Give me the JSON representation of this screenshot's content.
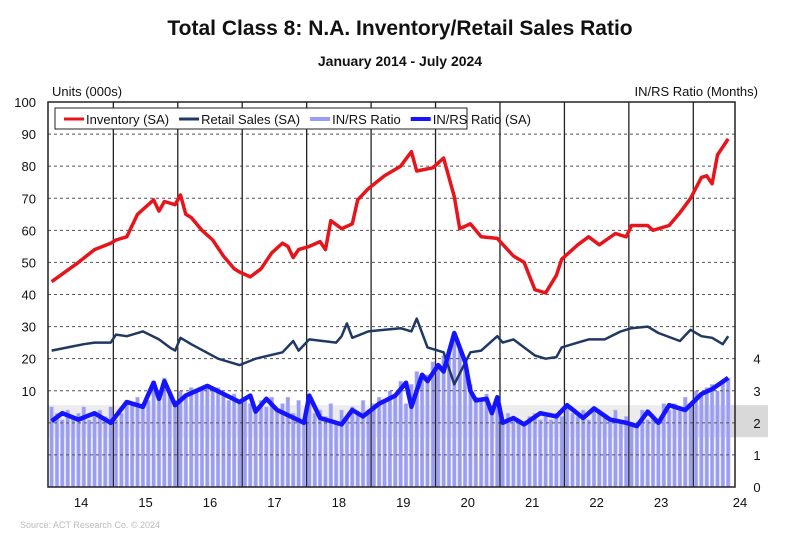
{
  "chart_data": {
    "type": "line",
    "title": "Total Class 8: N.A. Inventory/Retail Sales Ratio",
    "subtitle": "January 2014 - July 2024",
    "ylabel_left": "Units (000s)",
    "ylabel_right": "IN/RS Ratio (Months)",
    "ylim_left": [
      -20,
      100
    ],
    "ylim_right": [
      0,
      12
    ],
    "yticks_left": [
      "100",
      "90",
      "80",
      "70",
      "60",
      "50",
      "40",
      "30",
      "20",
      "10"
    ],
    "yticks_right": [
      "4",
      "3",
      "2",
      "1",
      "0"
    ],
    "xticks": [
      "14",
      "15",
      "16",
      "17",
      "18",
      "19",
      "20",
      "21",
      "22",
      "23",
      "24"
    ],
    "x_range": [
      "2014-01",
      "2024-07"
    ],
    "grid": true,
    "legend_position": "top",
    "band_right": {
      "from": 1.55,
      "to": 2.55,
      "color": "#d9d9d9"
    },
    "source": "Source: ACT Research Co. © 2024",
    "series": [
      {
        "name": "Inventory (SA)",
        "axis": "left",
        "style": "line",
        "color": "#e8141c",
        "points": [
          [
            "2014-01",
            44
          ],
          [
            "2014-06",
            50
          ],
          [
            "2014-09",
            54
          ],
          [
            "2014-12",
            56
          ],
          [
            "2015-01",
            57
          ],
          [
            "2015-03",
            58
          ],
          [
            "2015-05",
            65
          ],
          [
            "2015-08",
            69.5
          ],
          [
            "2015-09",
            66
          ],
          [
            "2015-10",
            69
          ],
          [
            "2015-12",
            68
          ],
          [
            "2016-01",
            71
          ],
          [
            "2016-02",
            65
          ],
          [
            "2016-03",
            64
          ],
          [
            "2016-05",
            60
          ],
          [
            "2016-07",
            57
          ],
          [
            "2016-09",
            52
          ],
          [
            "2016-11",
            48
          ],
          [
            "2016-12",
            47
          ],
          [
            "2017-02",
            45.5
          ],
          [
            "2017-04",
            48
          ],
          [
            "2017-06",
            53
          ],
          [
            "2017-08",
            56
          ],
          [
            "2017-09",
            55
          ],
          [
            "2017-10",
            51.5
          ],
          [
            "2017-11",
            54
          ],
          [
            "2018-01",
            55
          ],
          [
            "2018-03",
            56.5
          ],
          [
            "2018-04",
            54
          ],
          [
            "2018-05",
            63
          ],
          [
            "2018-07",
            60.5
          ],
          [
            "2018-09",
            62
          ],
          [
            "2018-10",
            69.5
          ],
          [
            "2018-12",
            73
          ],
          [
            "2019-03",
            77
          ],
          [
            "2019-06",
            80
          ],
          [
            "2019-08",
            84.5
          ],
          [
            "2019-09",
            78.5
          ],
          [
            "2019-12",
            79.5
          ],
          [
            "2020-02",
            82.5
          ],
          [
            "2020-04",
            70.5
          ],
          [
            "2020-05",
            60.5
          ],
          [
            "2020-07",
            62
          ],
          [
            "2020-09",
            58
          ],
          [
            "2020-12",
            57.5
          ],
          [
            "2021-03",
            52
          ],
          [
            "2021-05",
            50
          ],
          [
            "2021-07",
            41.5
          ],
          [
            "2021-09",
            40.5
          ],
          [
            "2021-11",
            46
          ],
          [
            "2021-12",
            51
          ],
          [
            "2022-03",
            55.5
          ],
          [
            "2022-05",
            58
          ],
          [
            "2022-07",
            55.5
          ],
          [
            "2022-10",
            59
          ],
          [
            "2022-12",
            58
          ],
          [
            "2023-01",
            61.5
          ],
          [
            "2023-04",
            61.5
          ],
          [
            "2023-05",
            60
          ],
          [
            "2023-08",
            61.5
          ],
          [
            "2023-10",
            65.5
          ],
          [
            "2023-12",
            70
          ],
          [
            "2024-02",
            76.5
          ],
          [
            "2024-03",
            77
          ],
          [
            "2024-04",
            74.5
          ],
          [
            "2024-05",
            83.5
          ],
          [
            "2024-07",
            88.5
          ]
        ]
      },
      {
        "name": "Retail Sales (SA)",
        "axis": "left",
        "style": "line",
        "color": "#1f3864",
        "points": [
          [
            "2014-01",
            22.5
          ],
          [
            "2014-04",
            23.5
          ],
          [
            "2014-07",
            24.5
          ],
          [
            "2014-09",
            25
          ],
          [
            "2014-12",
            25
          ],
          [
            "2015-01",
            27.5
          ],
          [
            "2015-03",
            27
          ],
          [
            "2015-06",
            28.5
          ],
          [
            "2015-09",
            26
          ],
          [
            "2015-11",
            23.5
          ],
          [
            "2015-12",
            22.5
          ],
          [
            "2016-01",
            26.5
          ],
          [
            "2016-03",
            24.5
          ],
          [
            "2016-08",
            20
          ],
          [
            "2016-12",
            18
          ],
          [
            "2017-03",
            20
          ],
          [
            "2017-08",
            22
          ],
          [
            "2017-10",
            25.5
          ],
          [
            "2017-11",
            22.5
          ],
          [
            "2018-01",
            26
          ],
          [
            "2018-06",
            25
          ],
          [
            "2018-07",
            27
          ],
          [
            "2018-08",
            31
          ],
          [
            "2018-09",
            26.5
          ],
          [
            "2018-12",
            28.5
          ],
          [
            "2019-06",
            29.5
          ],
          [
            "2019-08",
            28.5
          ],
          [
            "2019-09",
            32.5
          ],
          [
            "2019-11",
            23.5
          ],
          [
            "2020-02",
            22
          ],
          [
            "2020-04",
            12
          ],
          [
            "2020-07",
            22
          ],
          [
            "2020-09",
            22.5
          ],
          [
            "2020-12",
            27
          ],
          [
            "2021-01",
            25
          ],
          [
            "2021-03",
            26
          ],
          [
            "2021-07",
            21
          ],
          [
            "2021-09",
            20
          ],
          [
            "2021-11",
            20.5
          ],
          [
            "2021-12",
            23.5
          ],
          [
            "2022-03",
            25
          ],
          [
            "2022-05",
            26
          ],
          [
            "2022-08",
            26
          ],
          [
            "2022-11",
            28.5
          ],
          [
            "2023-01",
            29.5
          ],
          [
            "2023-04",
            30
          ],
          [
            "2023-06",
            28
          ],
          [
            "2023-10",
            25.5
          ],
          [
            "2023-12",
            29
          ],
          [
            "2024-02",
            27
          ],
          [
            "2024-04",
            26.5
          ],
          [
            "2024-06",
            24.5
          ],
          [
            "2024-07",
            27
          ]
        ]
      },
      {
        "name": "IN/RS Ratio",
        "axis": "right",
        "style": "bar",
        "color": "#9b9df2",
        "monthly": [
          2.5,
          2.3,
          2.1,
          2.4,
          2.2,
          2.3,
          2.5,
          2.1,
          2.3,
          2.4,
          2.2,
          2.5,
          2.1,
          2.3,
          2.7,
          2.6,
          2.8,
          2.5,
          2.7,
          3.3,
          2.9,
          3.4,
          3.0,
          2.7,
          3.0,
          2.9,
          3.1,
          3.0,
          3.1,
          3.2,
          3.0,
          3.1,
          2.9,
          2.7,
          2.9,
          2.6,
          2.8,
          2.6,
          2.4,
          2.7,
          2.5,
          2.8,
          2.4,
          2.6,
          2.8,
          2.3,
          2.7,
          2.0,
          2.9,
          2.3,
          2.4,
          2.2,
          2.6,
          2.0,
          2.4,
          2.2,
          2.5,
          2.3,
          2.7,
          2.4,
          2.6,
          2.8,
          2.7,
          3.0,
          2.9,
          3.3,
          2.6,
          3.2,
          3.6,
          3.4,
          3.5,
          3.9,
          3.8,
          4.1,
          4.3,
          4.6,
          4.3,
          3.8,
          3.2,
          2.8,
          2.7,
          2.9,
          2.4,
          2.8,
          2.1,
          2.3,
          2.1,
          2.0,
          1.9,
          2.2,
          2.3,
          2.1,
          2.2,
          2.1,
          2.3,
          2.2,
          2.6,
          2.3,
          2.2,
          2.4,
          2.1,
          2.5,
          2.3,
          2.2,
          2.1,
          2.4,
          2.0,
          2.2,
          2.0,
          1.9,
          2.4,
          2.1,
          2.2,
          2.0,
          2.6,
          2.4,
          2.6,
          2.5,
          2.8,
          2.6,
          3.0,
          2.9,
          3.1,
          3.2,
          3.0,
          3.3,
          3.4
        ]
      },
      {
        "name": "IN/RS Ratio (SA)",
        "axis": "right",
        "style": "line",
        "color": "#1414ff",
        "points": [
          [
            "2014-01",
            2.05
          ],
          [
            "2014-03",
            2.3
          ],
          [
            "2014-06",
            2.1
          ],
          [
            "2014-09",
            2.3
          ],
          [
            "2014-12",
            2.0
          ],
          [
            "2015-03",
            2.65
          ],
          [
            "2015-06",
            2.5
          ],
          [
            "2015-08",
            3.25
          ],
          [
            "2015-09",
            2.75
          ],
          [
            "2015-10",
            3.3
          ],
          [
            "2015-12",
            2.55
          ],
          [
            "2016-02",
            2.85
          ],
          [
            "2016-06",
            3.15
          ],
          [
            "2016-12",
            2.65
          ],
          [
            "2017-02",
            2.85
          ],
          [
            "2017-03",
            2.35
          ],
          [
            "2017-05",
            2.75
          ],
          [
            "2017-07",
            2.4
          ],
          [
            "2017-12",
            2.0
          ],
          [
            "2018-01",
            2.85
          ],
          [
            "2018-03",
            2.15
          ],
          [
            "2018-07",
            1.95
          ],
          [
            "2018-09",
            2.4
          ],
          [
            "2018-11",
            2.2
          ],
          [
            "2019-02",
            2.6
          ],
          [
            "2019-05",
            2.85
          ],
          [
            "2019-07",
            3.25
          ],
          [
            "2019-08",
            2.5
          ],
          [
            "2019-10",
            3.5
          ],
          [
            "2019-11",
            3.3
          ],
          [
            "2020-01",
            3.8
          ],
          [
            "2020-02",
            3.6
          ],
          [
            "2020-04",
            4.8
          ],
          [
            "2020-06",
            3.9
          ],
          [
            "2020-07",
            3.0
          ],
          [
            "2020-08",
            2.7
          ],
          [
            "2020-10",
            2.75
          ],
          [
            "2020-11",
            2.3
          ],
          [
            "2020-12",
            2.8
          ],
          [
            "2021-01",
            2.0
          ],
          [
            "2021-03",
            2.15
          ],
          [
            "2021-05",
            1.95
          ],
          [
            "2021-08",
            2.3
          ],
          [
            "2021-11",
            2.2
          ],
          [
            "2022-01",
            2.55
          ],
          [
            "2022-04",
            2.15
          ],
          [
            "2022-06",
            2.45
          ],
          [
            "2022-09",
            2.1
          ],
          [
            "2022-12",
            2.0
          ],
          [
            "2023-02",
            1.9
          ],
          [
            "2023-04",
            2.35
          ],
          [
            "2023-06",
            2.0
          ],
          [
            "2023-08",
            2.55
          ],
          [
            "2023-11",
            2.4
          ],
          [
            "2024-02",
            2.9
          ],
          [
            "2024-04",
            3.05
          ],
          [
            "2024-07",
            3.4
          ]
        ]
      }
    ]
  }
}
